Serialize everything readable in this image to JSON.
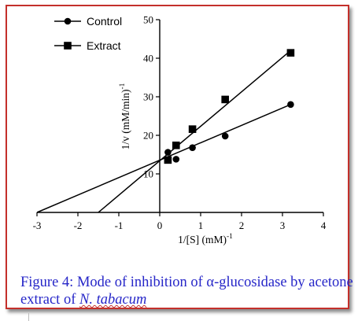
{
  "figure": {
    "caption_prefix": "Figure 4: Mode of inhibition of α-glucosidase by acetone extract of ",
    "caption_species": "N. tabacum"
  },
  "colors": {
    "frame": "#c4302b",
    "caption": "#2626c8",
    "series": "#000000"
  },
  "chart_data": {
    "type": "scatter",
    "title": "",
    "xlabel": "1/[S] (mM)",
    "xlabel_sup": "-1",
    "ylabel": "1/v (mM/min)",
    "ylabel_sup": "-1",
    "xlim": [
      -3,
      4
    ],
    "ylim": [
      0,
      50
    ],
    "xticks": [
      -3,
      -2,
      -1,
      0,
      1,
      2,
      3,
      4
    ],
    "yticks": [
      10,
      20,
      30,
      40,
      50
    ],
    "grid": false,
    "legend_position": "top-left",
    "series": [
      {
        "name": "Control",
        "marker": "circle",
        "points": [
          [
            0.2,
            15.6
          ],
          [
            0.4,
            13.8
          ],
          [
            0.8,
            16.8
          ],
          [
            1.6,
            19.8
          ],
          [
            3.2,
            28.0
          ]
        ],
        "fit_line": [
          [
            -3.0,
            0.0
          ],
          [
            3.2,
            28.0
          ]
        ]
      },
      {
        "name": "Extract",
        "marker": "square",
        "points": [
          [
            0.2,
            13.6
          ],
          [
            0.4,
            17.4
          ],
          [
            0.8,
            21.6
          ],
          [
            1.6,
            29.3
          ],
          [
            3.2,
            41.4
          ]
        ],
        "fit_line": [
          [
            -1.5,
            0.0
          ],
          [
            3.2,
            42.0
          ]
        ]
      }
    ]
  }
}
